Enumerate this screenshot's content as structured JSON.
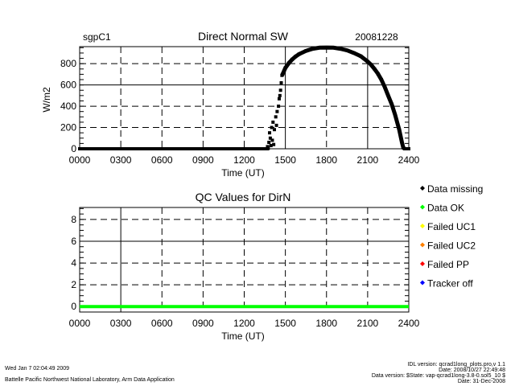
{
  "chart_data": [
    {
      "type": "scatter",
      "site": "sgpC1",
      "title": "Direct Normal SW",
      "date": "20081228",
      "xlabel": "Time (UT)",
      "ylabel": "W/m2",
      "xlim": [
        0,
        24
      ],
      "ylim": [
        0,
        960
      ],
      "xticks": [
        {
          "v": 0,
          "label": "0000"
        },
        {
          "v": 3,
          "label": "0300"
        },
        {
          "v": 6,
          "label": "0600"
        },
        {
          "v": 9,
          "label": "0900"
        },
        {
          "v": 12,
          "label": "1200"
        },
        {
          "v": 15,
          "label": "1500"
        },
        {
          "v": 18,
          "label": "1800"
        },
        {
          "v": 21,
          "label": "2100"
        },
        {
          "v": 24,
          "label": "2400"
        }
      ],
      "yticks": [
        {
          "v": 0,
          "label": "0"
        },
        {
          "v": 200,
          "label": "200"
        },
        {
          "v": 400,
          "label": "400"
        },
        {
          "v": 600,
          "label": "600"
        },
        {
          "v": 800,
          "label": "800"
        }
      ],
      "grid": true,
      "series": [
        {
          "name": "Direct Normal SW",
          "color": "#000000",
          "points": [
            [
              0,
              0
            ],
            [
              13.7,
              0
            ],
            [
              13.7,
              20
            ],
            [
              13.75,
              5
            ],
            [
              13.8,
              60
            ],
            [
              13.85,
              150
            ],
            [
              13.9,
              100
            ],
            [
              13.95,
              30
            ],
            [
              14.0,
              200
            ],
            [
              14.05,
              80
            ],
            [
              14.1,
              250
            ],
            [
              14.15,
              40
            ],
            [
              14.2,
              180
            ],
            [
              14.3,
              300
            ],
            [
              14.35,
              220
            ],
            [
              14.4,
              350
            ],
            [
              14.5,
              400
            ],
            [
              14.55,
              470
            ],
            [
              14.6,
              500
            ],
            [
              14.65,
              550
            ],
            [
              14.7,
              620
            ],
            [
              14.75,
              690
            ],
            [
              14.8,
              700
            ],
            [
              15.0,
              760
            ],
            [
              15.25,
              805
            ],
            [
              15.5,
              840
            ],
            [
              15.75,
              868
            ],
            [
              16.0,
              890
            ],
            [
              16.5,
              920
            ],
            [
              17.0,
              940
            ],
            [
              17.5,
              950
            ],
            [
              18.0,
              952
            ],
            [
              18.5,
              950
            ],
            [
              19.0,
              940
            ],
            [
              19.5,
              925
            ],
            [
              20.0,
              900
            ],
            [
              20.5,
              870
            ],
            [
              21.0,
              820
            ],
            [
              21.25,
              790
            ],
            [
              21.5,
              750
            ],
            [
              21.75,
              705
            ],
            [
              22.0,
              650
            ],
            [
              22.25,
              580
            ],
            [
              22.5,
              500
            ],
            [
              22.75,
              420
            ],
            [
              23.0,
              320
            ],
            [
              23.15,
              250
            ],
            [
              23.3,
              180
            ],
            [
              23.4,
              120
            ],
            [
              23.5,
              60
            ],
            [
              23.6,
              10
            ],
            [
              23.7,
              0
            ],
            [
              24,
              0
            ]
          ]
        }
      ]
    },
    {
      "type": "line",
      "title": "QC Values for DirN",
      "xlabel": "Time (UT)",
      "ylabel": "",
      "xlim": [
        0,
        24
      ],
      "ylim": [
        -0.5,
        9.1
      ],
      "xticks": [
        {
          "v": 0,
          "label": "0000"
        },
        {
          "v": 3,
          "label": "0300"
        },
        {
          "v": 6,
          "label": "0600"
        },
        {
          "v": 9,
          "label": "0900"
        },
        {
          "v": 12,
          "label": "1200"
        },
        {
          "v": 15,
          "label": "1500"
        },
        {
          "v": 18,
          "label": "1800"
        },
        {
          "v": 21,
          "label": "2100"
        },
        {
          "v": 24,
          "label": "2400"
        }
      ],
      "yticks": [
        {
          "v": 0,
          "label": "0"
        },
        {
          "v": 2,
          "label": "2"
        },
        {
          "v": 4,
          "label": "4"
        },
        {
          "v": 6,
          "label": "6"
        },
        {
          "v": 8,
          "label": "8"
        }
      ],
      "grid": true,
      "series": [
        {
          "name": "QC value",
          "color": "#00ff00",
          "points": [
            [
              0,
              0
            ],
            [
              24,
              0
            ]
          ]
        }
      ],
      "legend": [
        {
          "label": "Data missing",
          "color": "#000000"
        },
        {
          "label": "Data OK",
          "color": "#00ff00"
        },
        {
          "label": "Failed UC1",
          "color": "#ffff00"
        },
        {
          "label": "Failed UC2",
          "color": "#ff8000"
        },
        {
          "label": "Failed PP",
          "color": "#ff0000"
        },
        {
          "label": "Tracker off",
          "color": "#0000ff"
        }
      ]
    }
  ],
  "footer": {
    "timestamp": "Wed Jan  7 02:04:49 2009",
    "lab": "Battelle Pacific Northwest National Laboratory, Arm Data Application",
    "idl_version": "IDL version: qcrad1long_plots.pro,v 1.1",
    "idl_date": "Date: 2008/10/27 22:49:48",
    "data_version": "Data version: $State: vap-qcrad1long-3.8-0.sol5_10 $",
    "data_date": "Date: 31-Dec-2008"
  }
}
